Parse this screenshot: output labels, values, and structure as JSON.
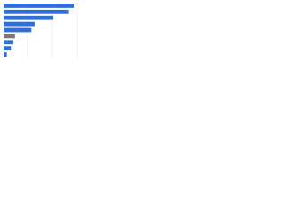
{
  "chart_data": {
    "type": "hbar",
    "categories": [
      null,
      null,
      null,
      null,
      null,
      null,
      null,
      null,
      null
    ],
    "values": [
      87,
      80,
      61,
      39,
      34,
      14,
      12,
      10,
      4
    ],
    "colors": [
      "#2f6fd6",
      "#2f6fd6",
      "#2f6fd6",
      "#2f6fd6",
      "#2f6fd6",
      "#7a7a7a",
      "#2f6fd6",
      "#2f6fd6",
      "#2f6fd6"
    ],
    "xlim": [
      0,
      100
    ]
  }
}
